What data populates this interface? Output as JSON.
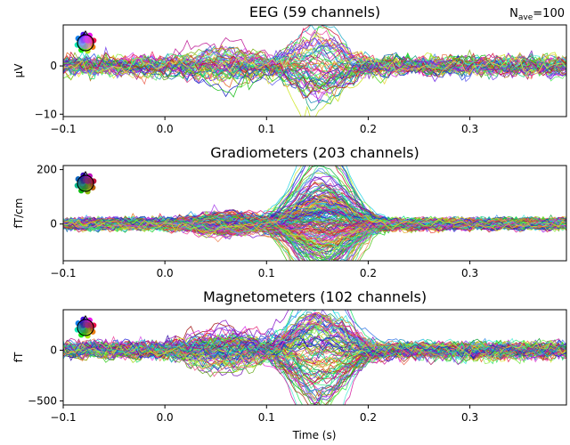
{
  "figure": {
    "nave_main": "N",
    "nave_sub": "ave",
    "nave_value": "=100",
    "xlabel": "Time (s)"
  },
  "chart_data": [
    {
      "type": "line",
      "title": "EEG (59 channels)",
      "ylabel": "µV",
      "n_channels": 59,
      "xlim": [
        -0.1,
        0.395
      ],
      "ylim": [
        -10.5,
        8.5
      ],
      "xticks": [
        -0.1,
        0.0,
        0.1,
        0.2,
        0.3
      ],
      "xtick_labels": [
        "−0.1",
        "0.0",
        "0.1",
        "0.2",
        "0.3"
      ],
      "yticks": [
        0,
        -10
      ],
      "ytick_labels": [
        "0",
        "−10"
      ],
      "components": [
        {
          "center": 0.06,
          "width": 0.03,
          "peak_abs": 3
        },
        {
          "center": 0.152,
          "width": 0.022,
          "peak_abs": 8
        }
      ],
      "noise_amplitude": 1.1,
      "extremes": {
        "max": 8,
        "min": -9.5,
        "time_of_extremes": 0.152
      },
      "series_style": "butterfly, one colored line per channel (colored by sensor position)",
      "inset": "sensor-position color head icon, top-left"
    },
    {
      "type": "line",
      "title": "Gradiometers (203 channels)",
      "ylabel": "fT/cm",
      "n_channels": 203,
      "xlim": [
        -0.1,
        0.395
      ],
      "ylim": [
        -135,
        215
      ],
      "xticks": [
        -0.1,
        0.0,
        0.1,
        0.2,
        0.3
      ],
      "xtick_labels": [
        "−0.1",
        "0.0",
        "0.1",
        "0.2",
        "0.3"
      ],
      "yticks": [
        200,
        0
      ],
      "ytick_labels": [
        "200",
        "0"
      ],
      "components": [
        {
          "center": 0.06,
          "width": 0.03,
          "peak_abs": 30
        },
        {
          "center": 0.155,
          "width": 0.025,
          "peak_abs": 200
        }
      ],
      "noise_amplitude": 11,
      "extremes": {
        "max": 205,
        "min": -120,
        "time_of_extremes": 0.155
      },
      "series_style": "butterfly, one colored line per channel (colored by sensor position)",
      "inset": "sensor-position color head icon, top-left"
    },
    {
      "type": "line",
      "title": "Magnetometers (102 channels)",
      "ylabel": "fT",
      "n_channels": 102,
      "xlim": [
        -0.1,
        0.395
      ],
      "ylim": [
        -540,
        400
      ],
      "xticks": [
        -0.1,
        0.0,
        0.1,
        0.2,
        0.3
      ],
      "xtick_labels": [
        "−0.1",
        "0.0",
        "0.1",
        "0.2",
        "0.3"
      ],
      "yticks": [
        0,
        -500
      ],
      "ytick_labels": [
        "0",
        "−500"
      ],
      "components": [
        {
          "center": 0.06,
          "width": 0.03,
          "peak_abs": 140
        },
        {
          "center": 0.152,
          "width": 0.025,
          "peak_abs": 460
        }
      ],
      "noise_amplitude": 45,
      "extremes": {
        "max": 350,
        "min": -480,
        "time_of_extremes": 0.152
      },
      "series_style": "butterfly, one colored line per channel (colored by sensor position)",
      "inset": "sensor-position color head icon, top-left"
    }
  ]
}
